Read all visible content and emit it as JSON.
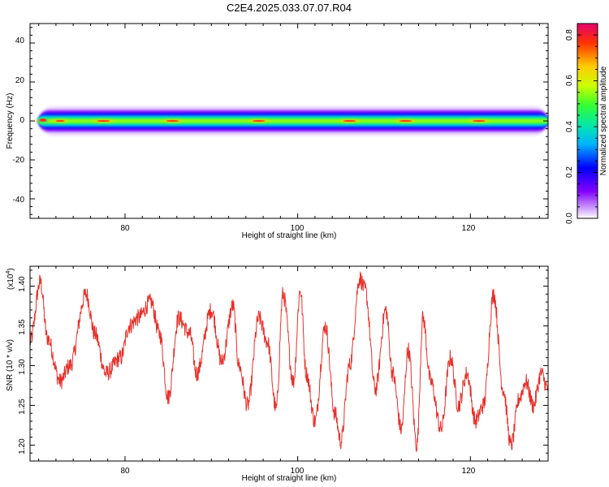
{
  "title": "C2E4.2025.033.07.07.R04",
  "chart_data": [
    {
      "type": "heatmap",
      "xlabel": "Height of straight line (km)",
      "ylabel": "Frequency (Hz)",
      "xlim": [
        69,
        129
      ],
      "ylim": [
        -50,
        50
      ],
      "xticks": [
        "80",
        "100",
        "120"
      ],
      "yticks": [
        "40",
        "20",
        "0",
        "-20",
        "-40"
      ],
      "colorbar": {
        "label": "Normalized spectral amplitude",
        "range": [
          0,
          0.85
        ],
        "ticks": [
          "0.0",
          "0.2",
          "0.4",
          "0.6",
          "0.8"
        ],
        "colormap": [
          "#ffffff",
          "#d9b3ff",
          "#8000ff",
          "#0000ff",
          "#00b3ff",
          "#00e5b3",
          "#33ff33",
          "#ccff00",
          "#ffcc00",
          "#ff3300",
          "#e6006e"
        ]
      },
      "band": {
        "center_hz": 0,
        "halfwidth_hz": 2.5,
        "hotspots_km": [
          70.5,
          72.5,
          77.5,
          85.5,
          95.5,
          106,
          112.5,
          121
        ]
      }
    },
    {
      "type": "line",
      "xlabel": "Height of straight line (km)",
      "ylabel": "SNR (10 * v/v)",
      "y_multiplier": "(x10",
      "y_multiplier_exp": "4",
      "y_multiplier_close": ")",
      "xlim": [
        69,
        129
      ],
      "ylim": [
        1.18,
        1.425
      ],
      "xticks": [
        "80",
        "100",
        "120"
      ],
      "yticks": [
        "1.40",
        "1.35",
        "1.30",
        "1.25",
        "1.20"
      ],
      "series": [
        {
          "color": "#e8302a",
          "x": [
            69,
            70.2,
            71,
            72.5,
            73.6,
            75.5,
            76.5,
            77.8,
            79.5,
            80.5,
            81.5,
            83,
            84,
            85,
            86.2,
            87.5,
            88.3,
            90,
            91.2,
            92.5,
            93.2,
            94.2,
            95.5,
            96.5,
            97.5,
            98.3,
            99.5,
            100.3,
            101,
            102,
            103.2,
            104.3,
            105,
            106,
            107.2,
            107.8,
            109,
            110.2,
            111,
            112,
            112.8,
            113.8,
            114.5,
            115.4,
            116.6,
            117.7,
            118.6,
            119.6,
            120.6,
            121.5,
            122.7,
            123.8,
            124.7,
            125.7,
            126.4,
            127.3,
            128.2,
            129
          ],
          "y": [
            1.33,
            1.405,
            1.335,
            1.28,
            1.3,
            1.39,
            1.34,
            1.29,
            1.31,
            1.35,
            1.36,
            1.38,
            1.34,
            1.26,
            1.36,
            1.34,
            1.29,
            1.37,
            1.305,
            1.375,
            1.3,
            1.25,
            1.36,
            1.33,
            1.245,
            1.39,
            1.28,
            1.395,
            1.29,
            1.23,
            1.35,
            1.24,
            1.205,
            1.3,
            1.41,
            1.395,
            1.27,
            1.37,
            1.29,
            1.22,
            1.32,
            1.2,
            1.36,
            1.28,
            1.22,
            1.31,
            1.25,
            1.29,
            1.23,
            1.25,
            1.39,
            1.27,
            1.2,
            1.26,
            1.28,
            1.25,
            1.29,
            1.27
          ]
        }
      ]
    }
  ]
}
